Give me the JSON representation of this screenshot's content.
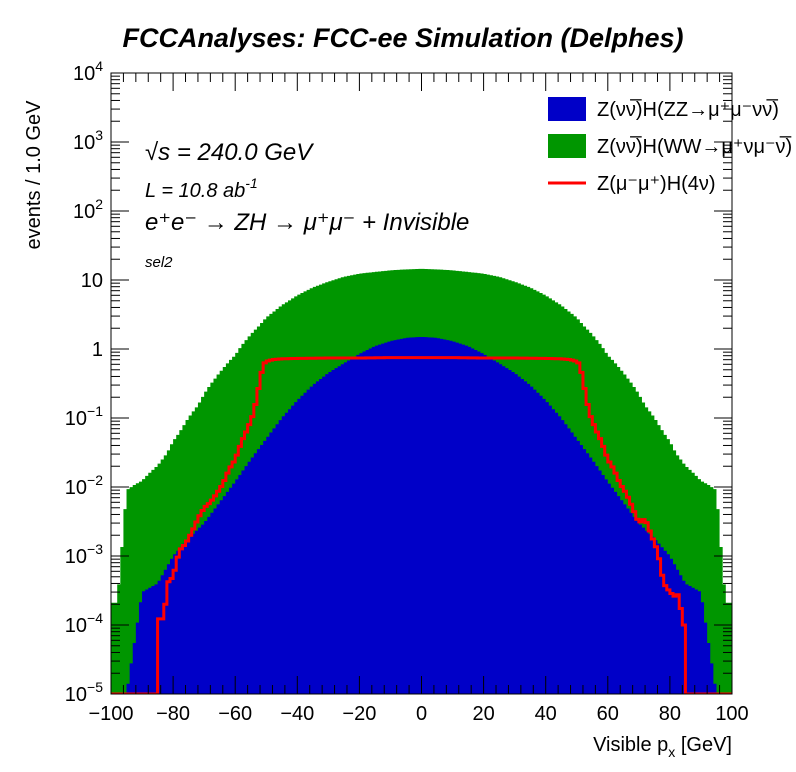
{
  "chart_data": {
    "type": "area",
    "title": "FCCAnalyses: FCC-ee Simulation (Delphes)",
    "xlabel": "Visible p_x [GeV]",
    "ylabel": "events / 1.0 GeV",
    "xlim": [
      -100,
      100
    ],
    "ylim": [
      1e-05,
      10000
    ],
    "yscale": "log",
    "bin_width": 1.0,
    "x_ticks": [
      "−100",
      "−80",
      "−60",
      "−40",
      "−20",
      "0",
      "20",
      "40",
      "60",
      "80",
      "100"
    ],
    "x_tick_values": [
      -100,
      -80,
      -60,
      -40,
      -20,
      0,
      20,
      40,
      60,
      80,
      100
    ],
    "y_ticks": [
      {
        "value": 1e-05,
        "base": "10",
        "exp": "−5"
      },
      {
        "value": 0.0001,
        "base": "10",
        "exp": "−4"
      },
      {
        "value": 0.001,
        "base": "10",
        "exp": "−3"
      },
      {
        "value": 0.01,
        "base": "10",
        "exp": "−2"
      },
      {
        "value": 0.1,
        "base": "10",
        "exp": "−1"
      },
      {
        "value": 1,
        "base": "1",
        "exp": ""
      },
      {
        "value": 10,
        "base": "10",
        "exp": ""
      },
      {
        "value": 100,
        "base": "10",
        "exp": "2"
      },
      {
        "value": 1000,
        "base": "10",
        "exp": "3"
      },
      {
        "value": 10000,
        "base": "10",
        "exp": "4"
      }
    ],
    "annotations": {
      "sqrt_s": "√s = 240.0 GeV",
      "lumi_prefix": "L = 10.8 ab",
      "lumi_exp": "-1",
      "process": "e⁺e⁻ → ZH → μ⁺μ⁻ + Invisible",
      "selection": "sel2"
    },
    "series": [
      {
        "name": "Z(νν̅)H(ZZ→μ⁺μ⁻νν̅)",
        "style": "filled-stacked",
        "color": "#0000c8",
        "x": [
          -95,
          -90,
          -85,
          -80,
          -75,
          -70,
          -65,
          -60,
          -55,
          -50,
          -45,
          -40,
          -35,
          -30,
          -25,
          -20,
          -15,
          -10,
          -5,
          0,
          5,
          10,
          15,
          20,
          25,
          30,
          35,
          40,
          45,
          50,
          55,
          60,
          65,
          70,
          75,
          80,
          85,
          90,
          95
        ],
        "values": [
          1e-05,
          0.0003,
          0.0004,
          0.001,
          0.0018,
          0.003,
          0.006,
          0.012,
          0.025,
          0.05,
          0.1,
          0.18,
          0.3,
          0.45,
          0.62,
          0.85,
          1.1,
          1.3,
          1.45,
          1.5,
          1.45,
          1.3,
          1.1,
          0.85,
          0.62,
          0.45,
          0.3,
          0.18,
          0.1,
          0.05,
          0.025,
          0.012,
          0.006,
          0.003,
          0.0018,
          0.001,
          0.0004,
          0.0003,
          1e-05
        ]
      },
      {
        "name": "Z(νν̅)H(WW→μ⁺νμ⁻ν̅)",
        "style": "filled-stacked",
        "color": "#009600",
        "x": [
          -98,
          -95,
          -92,
          -90,
          -88,
          -85,
          -82,
          -80,
          -78,
          -75,
          -72,
          -70,
          -68,
          -65,
          -62,
          -60,
          -58,
          -55,
          -52,
          -50,
          -45,
          -40,
          -35,
          -30,
          -25,
          -20,
          -15,
          -10,
          -5,
          0,
          5,
          10,
          15,
          20,
          25,
          30,
          35,
          40,
          45,
          50,
          52,
          55,
          58,
          60,
          62,
          65,
          68,
          70,
          72,
          75,
          78,
          80,
          82,
          85,
          88,
          90,
          92,
          95,
          98
        ],
        "values": [
          0.0002,
          0.009,
          0.011,
          0.012,
          0.015,
          0.02,
          0.03,
          0.045,
          0.06,
          0.1,
          0.15,
          0.22,
          0.3,
          0.45,
          0.65,
          0.8,
          1.1,
          1.6,
          2.2,
          2.8,
          4.2,
          5.8,
          7.5,
          9.0,
          10.5,
          11.5,
          12.0,
          12.5,
          12.8,
          13.0,
          12.8,
          12.5,
          12.0,
          11.5,
          10.5,
          9.0,
          7.5,
          5.8,
          4.2,
          2.8,
          2.2,
          1.6,
          1.1,
          0.8,
          0.65,
          0.45,
          0.3,
          0.22,
          0.15,
          0.1,
          0.06,
          0.045,
          0.03,
          0.02,
          0.015,
          0.012,
          0.011,
          0.009,
          0.0002
        ]
      },
      {
        "name": "Z(μ⁻μ⁺)H(4ν)",
        "style": "line",
        "color": "#ff0000",
        "x": [
          -100,
          -85.5,
          -85,
          -84,
          -83,
          -82,
          -80,
          -78,
          -76,
          -74,
          -72,
          -70,
          -68,
          -66,
          -64,
          -62,
          -60,
          -58,
          -56,
          -54,
          -52,
          -51,
          -50,
          -49,
          -48,
          -45,
          -40,
          -30,
          -20,
          -10,
          0,
          10,
          20,
          30,
          40,
          45,
          48,
          49,
          50,
          51,
          52,
          54,
          56,
          58,
          60,
          62,
          64,
          66,
          68,
          70,
          72,
          74,
          76,
          78,
          80,
          82,
          83,
          84,
          85,
          85.5,
          100
        ],
        "values": [
          1e-05,
          1e-05,
          0.0001,
          0.00015,
          0.0001,
          0.0004,
          0.0005,
          0.0012,
          0.0015,
          0.0022,
          0.0035,
          0.005,
          0.006,
          0.008,
          0.011,
          0.018,
          0.025,
          0.045,
          0.07,
          0.12,
          0.35,
          0.6,
          0.66,
          0.68,
          0.7,
          0.72,
          0.73,
          0.74,
          0.74,
          0.75,
          0.75,
          0.75,
          0.74,
          0.74,
          0.73,
          0.72,
          0.7,
          0.68,
          0.66,
          0.6,
          0.35,
          0.12,
          0.07,
          0.045,
          0.025,
          0.018,
          0.011,
          0.008,
          0.005,
          0.003,
          0.0035,
          0.002,
          0.0012,
          0.0004,
          0.0003,
          0.00025,
          0.0003,
          0.0001,
          0.0001,
          1e-05,
          1e-05
        ]
      }
    ],
    "legend_position": "top-right"
  }
}
